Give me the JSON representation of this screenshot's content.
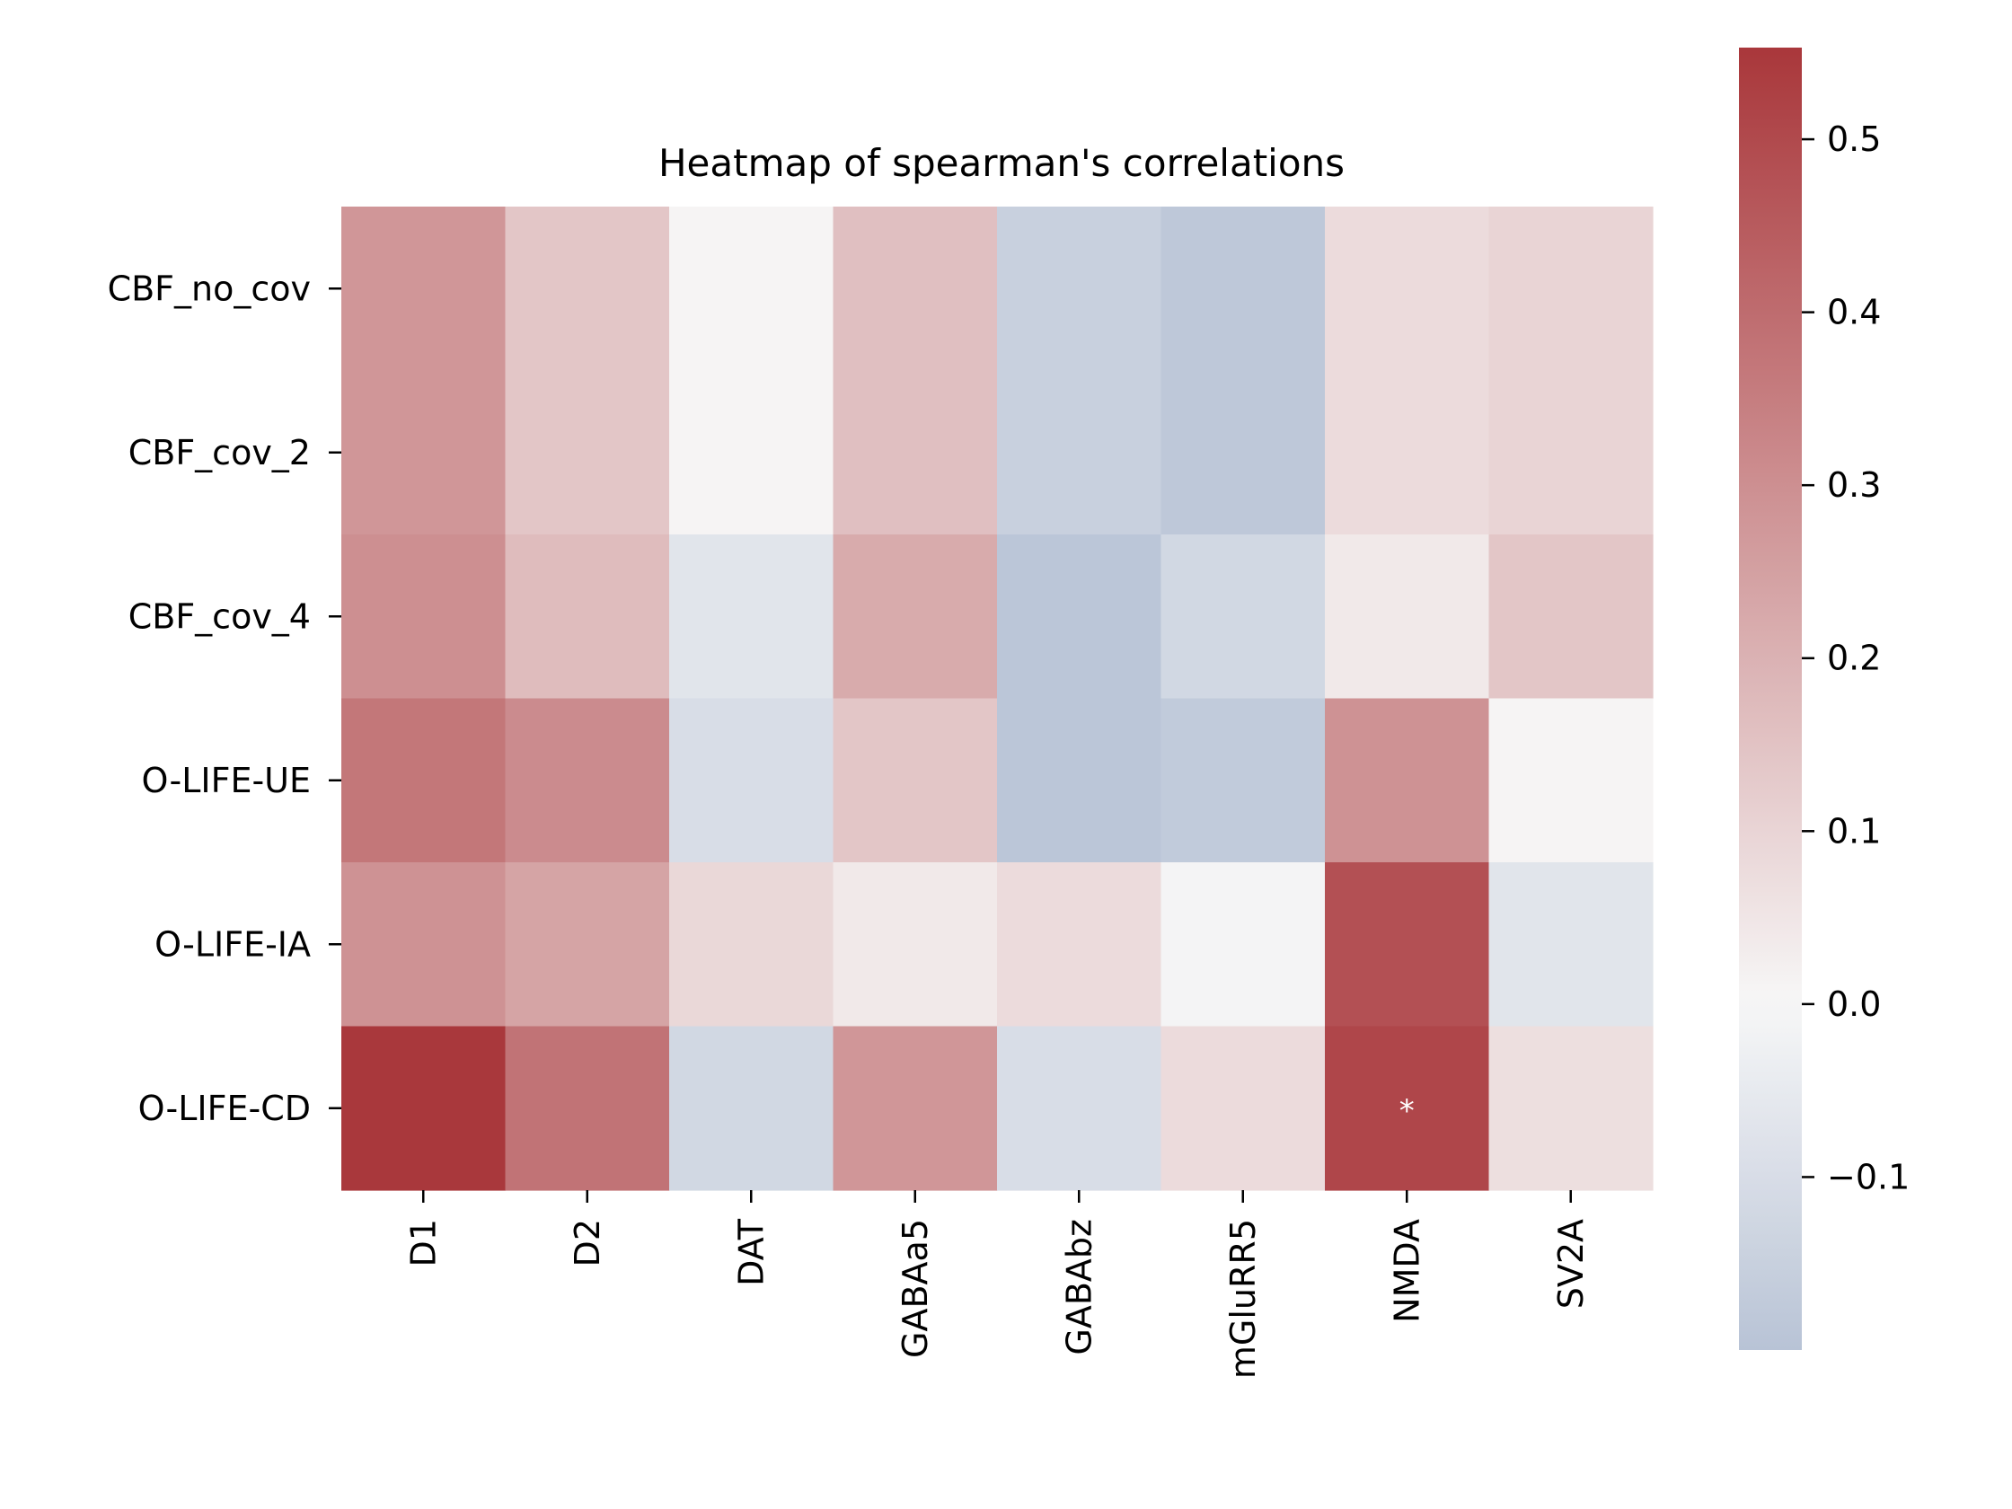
{
  "chart_data": {
    "type": "heatmap",
    "title": "Heatmap of spearman's correlations",
    "xlabel": "",
    "ylabel": "",
    "rows": [
      "CBF_no_cov",
      "CBF_cov_2",
      "CBF_cov_4",
      "O-LIFE-UE",
      "O-LIFE-IA",
      "O-LIFE-CD"
    ],
    "columns": [
      "D1",
      "D2",
      "DAT",
      "GABAa5",
      "GABAbz",
      "mGluRR5",
      "NMDA",
      "SV2A"
    ],
    "values": [
      [
        0.28,
        0.14,
        0.01,
        0.16,
        -0.15,
        -0.18,
        0.08,
        0.1
      ],
      [
        0.28,
        0.14,
        0.01,
        0.16,
        -0.15,
        -0.18,
        0.08,
        0.1
      ],
      [
        0.3,
        0.17,
        -0.07,
        0.22,
        -0.19,
        -0.12,
        0.04,
        0.14
      ],
      [
        0.37,
        0.31,
        -0.1,
        0.14,
        -0.19,
        -0.17,
        0.29,
        0.01
      ],
      [
        0.29,
        0.24,
        0.09,
        0.04,
        0.08,
        -0.01,
        0.48,
        -0.07
      ],
      [
        0.55,
        0.38,
        -0.12,
        0.28,
        -0.1,
        0.08,
        0.51,
        0.07
      ]
    ],
    "annotations": [
      {
        "row": 5,
        "col": 6,
        "text": "*"
      }
    ],
    "colorbar": {
      "min": -0.2,
      "max": 0.553,
      "ticks": [
        -0.1,
        0.0,
        0.1,
        0.2,
        0.3,
        0.4,
        0.5
      ],
      "tick_labels": [
        "−0.1",
        "0.0",
        "0.1",
        "0.2",
        "0.3",
        "0.4",
        "0.5"
      ],
      "colormap": "vlag",
      "low_color": "#B8C3D6",
      "mid_color": "#F7F7F7",
      "high_color": "#A9373B"
    }
  }
}
